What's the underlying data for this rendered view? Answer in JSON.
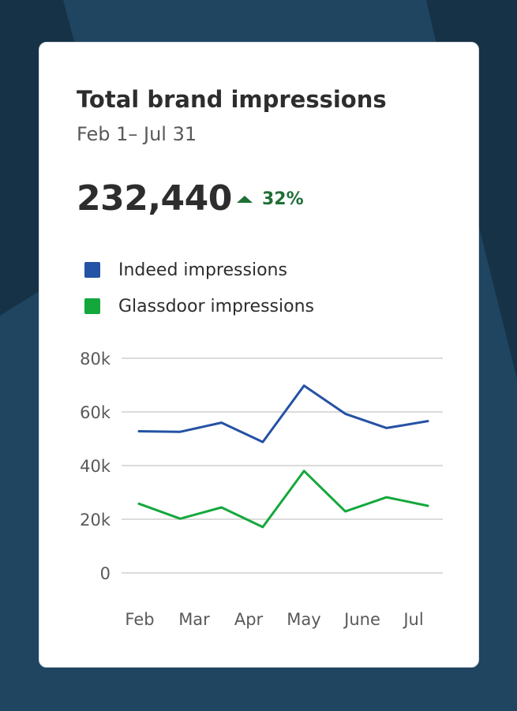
{
  "card": {
    "title": "Total brand impressions",
    "date_range": "Feb 1– Jul 31",
    "total": "232,440",
    "change": "32%",
    "change_icon": "triangle-up-icon",
    "change_color": "#1f6f37"
  },
  "legend": [
    {
      "label": "Indeed impressions",
      "color": "#2452a4"
    },
    {
      "label": "Glassdoor impressions",
      "color": "#14a83c"
    }
  ],
  "chart_data": {
    "type": "line",
    "categories": [
      "Feb",
      "Mar",
      "Apr",
      "May",
      "June",
      "Jul"
    ],
    "x": [
      0,
      1,
      2,
      3,
      4,
      5,
      6,
      7
    ],
    "series": [
      {
        "name": "Indeed impressions",
        "color": "#2452a4",
        "values": [
          52800,
          52600,
          56000,
          48800,
          69800,
          59300,
          54000,
          56600
        ]
      },
      {
        "name": "Glassdoor impressions",
        "color": "#14a83c",
        "values": [
          25800,
          20200,
          24400,
          17100,
          38000,
          22900,
          28200,
          25000
        ]
      }
    ],
    "y_ticks": [
      0,
      20000,
      40000,
      60000,
      80000
    ],
    "y_tick_labels": [
      "0",
      "20k",
      "40k",
      "60k",
      "80k"
    ],
    "ylim": [
      0,
      80000
    ],
    "grid": true,
    "legend_position": "top-left",
    "title": "Total brand impressions"
  }
}
